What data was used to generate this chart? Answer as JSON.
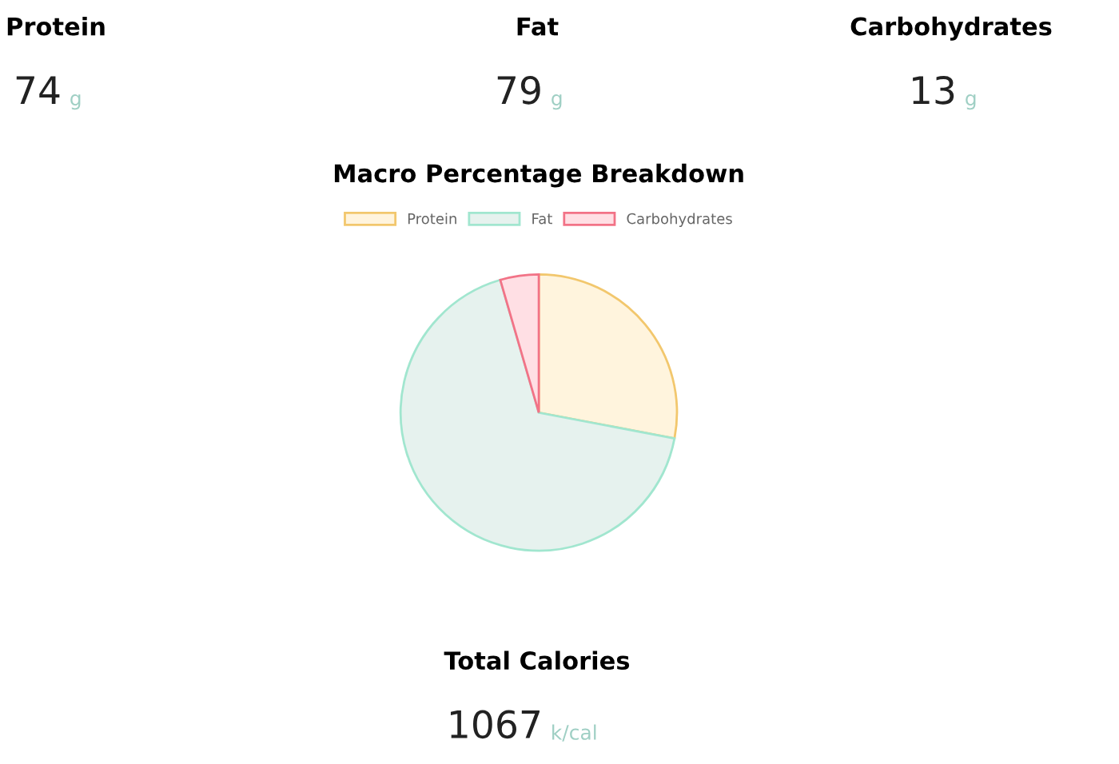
{
  "chart_data": [
    {
      "type": "other",
      "annotations": [
        "Protein",
        "74",
        "g",
        "Fat",
        "79",
        "g",
        "Carbohydrates",
        "13",
        "g"
      ]
    },
    {
      "type": "pie",
      "title": "Macro Percentage Breakdown",
      "categories": [
        "Protein",
        "Fat",
        "Carbohydrates"
      ],
      "values": [
        28,
        67.5,
        4.5
      ],
      "colors": [
        "#fff4dd",
        "#e6f2ee",
        "#ffdfe4"
      ],
      "legend": "top"
    },
    {
      "type": "other",
      "annotations": [
        "Total Calories",
        "1067",
        "k/cal"
      ]
    }
  ]
}
